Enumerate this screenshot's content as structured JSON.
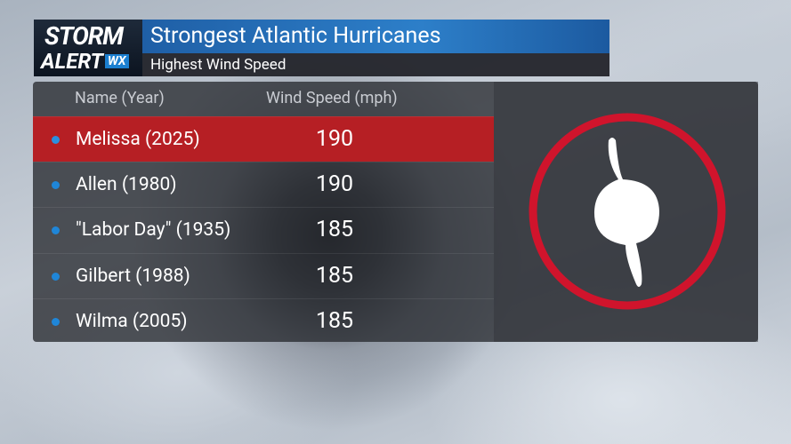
{
  "header": {
    "logo_top": "STORM",
    "logo_bottom": "ALERT",
    "logo_badge": "WX",
    "title": "Strongest Atlantic Hurricanes",
    "subtitle": "Highest Wind Speed"
  },
  "table": {
    "columns": [
      "Name (Year)",
      "Wind Speed (mph)"
    ],
    "rows": [
      [
        "Melissa (2025)",
        190
      ],
      [
        "Allen (1980)",
        190
      ],
      [
        "\"Labor Day\" (1935)",
        185
      ],
      [
        "Gilbert (1988)",
        185
      ],
      [
        "Wilma (2005)",
        185
      ]
    ]
  }
}
